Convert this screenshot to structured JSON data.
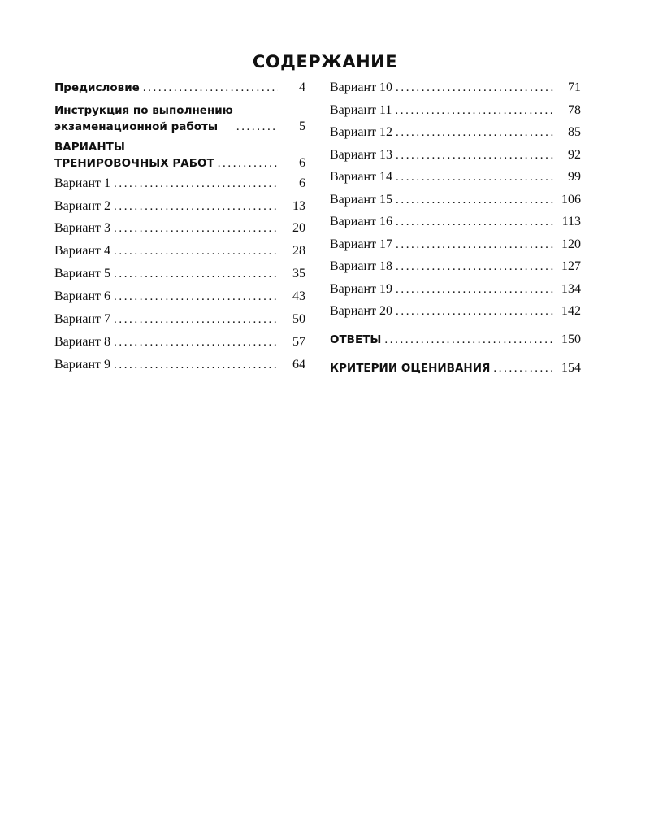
{
  "title": "СОДЕРЖАНИЕ",
  "left_column": [
    {
      "label": "Предисловие",
      "page": "4",
      "bold": true
    },
    {
      "label": "Инструкция по выполнению\nэкзаменационной работы",
      "page": "5",
      "bold": true
    },
    {
      "label": "ВАРИАНТЫ\nТРЕНИРОВОЧНЫХ РАБОТ",
      "page": "6",
      "bold": true
    },
    {
      "label": "Вариант 1",
      "page": "6"
    },
    {
      "label": "Вариант 2",
      "page": "13"
    },
    {
      "label": "Вариант 3",
      "page": "20"
    },
    {
      "label": "Вариант 4",
      "page": "28"
    },
    {
      "label": "Вариант 5",
      "page": "35"
    },
    {
      "label": "Вариант 6",
      "page": "43"
    },
    {
      "label": "Вариант 7",
      "page": "50"
    },
    {
      "label": "Вариант 8",
      "page": "57"
    },
    {
      "label": "Вариант 9",
      "page": "64"
    }
  ],
  "right_column": [
    {
      "label": "Вариант 10",
      "page": "71"
    },
    {
      "label": "Вариант 11",
      "page": "78"
    },
    {
      "label": "Вариант 12",
      "page": "85"
    },
    {
      "label": "Вариант 13",
      "page": "92"
    },
    {
      "label": "Вариант 14",
      "page": "99"
    },
    {
      "label": "Вариант 15",
      "page": "106"
    },
    {
      "label": "Вариант 16",
      "page": "113"
    },
    {
      "label": "Вариант 17",
      "page": "120"
    },
    {
      "label": "Вариант 18",
      "page": "127"
    },
    {
      "label": "Вариант 19",
      "page": "134"
    },
    {
      "label": "Вариант 20",
      "page": "142"
    },
    {
      "label": "ОТВЕТЫ",
      "page": "150",
      "bold": true
    },
    {
      "label": "КРИТЕРИИ ОЦЕНИВАНИЯ",
      "page": "154",
      "bold": true
    }
  ]
}
